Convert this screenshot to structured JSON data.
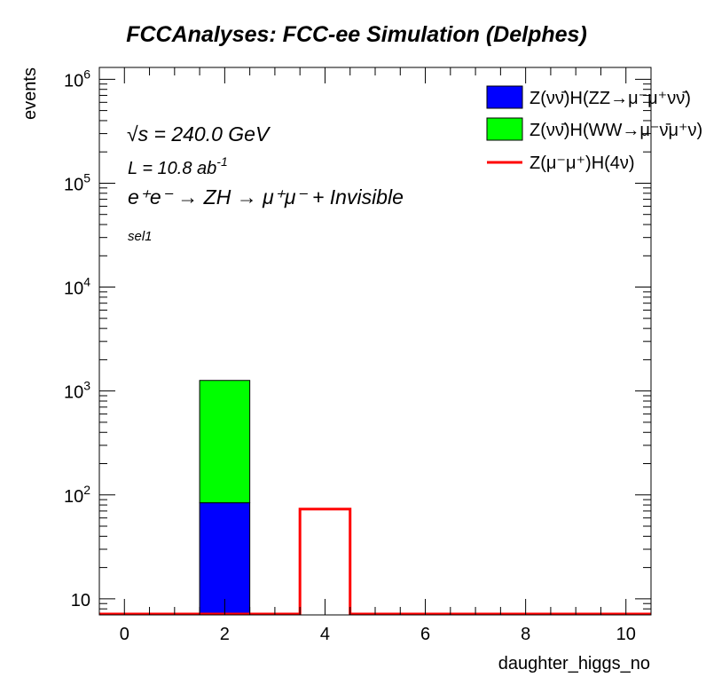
{
  "chart_data": {
    "type": "bar",
    "title": "FCCAnalyses: FCC-ee Simulation (Delphes)",
    "xlabel": "daughter_higgs_no",
    "ylabel": "events",
    "xlim": [
      -0.5,
      10.5
    ],
    "ylim": [
      7,
      1300000
    ],
    "ylog": true,
    "x_ticks": [
      "0",
      "2",
      "4",
      "6",
      "8",
      "10"
    ],
    "y_ticks": [
      {
        "base": "10",
        "exp": ""
      },
      {
        "base": "10",
        "exp": "2"
      },
      {
        "base": "10",
        "exp": "3"
      },
      {
        "base": "10",
        "exp": "4"
      },
      {
        "base": "10",
        "exp": "5"
      },
      {
        "base": "10",
        "exp": "6"
      }
    ],
    "annotations": {
      "sqrt_s": "√s = 240.0 GeV",
      "lumi_prefix": "L = 10.8 ab",
      "lumi_exp": "-1",
      "process": "e⁺e⁻ → ZH → μ⁺μ⁻ + Invisible",
      "selection": "sel1"
    },
    "legend_position": "top-right",
    "series": [
      {
        "name": "Z(νν̄)H(ZZ→μ⁻μ⁺νν̄)",
        "style": "stacked-fill",
        "color": "#0000ff",
        "bins": [
          {
            "low": 1.5,
            "high": 2.5,
            "value": 84
          }
        ]
      },
      {
        "name": "Z(νν̄)H(WW→μ⁻ν̄μ⁺ν)",
        "style": "stacked-fill",
        "color": "#00ff00",
        "bins": [
          {
            "low": 1.5,
            "high": 2.5,
            "value": 1180
          }
        ]
      },
      {
        "name": "Z(μ⁻μ⁺)H(4ν)",
        "style": "line",
        "color": "#ff0000",
        "bins": [
          {
            "low": 3.5,
            "high": 4.5,
            "value": 73
          }
        ]
      }
    ]
  }
}
